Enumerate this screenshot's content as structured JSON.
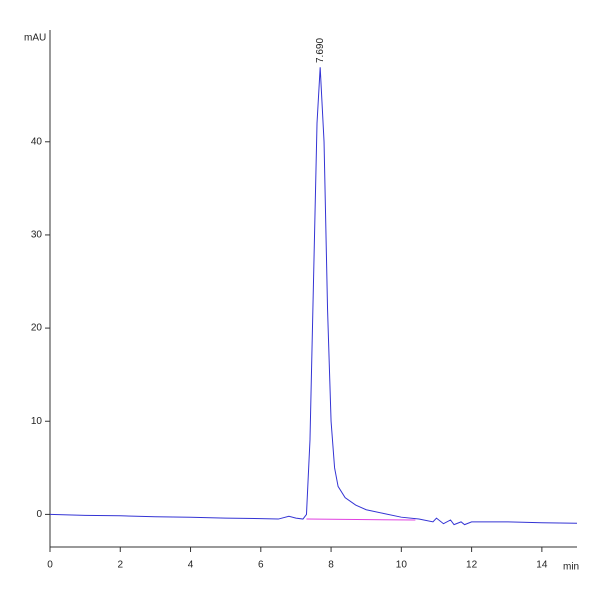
{
  "chart_data": {
    "type": "line",
    "ylabel": "mAU",
    "xlabel": "min",
    "x": [
      0,
      1,
      2,
      3,
      4,
      5,
      6,
      6.5,
      6.8,
      7.0,
      7.2,
      7.3,
      7.4,
      7.5,
      7.6,
      7.69,
      7.8,
      7.9,
      8.0,
      8.1,
      8.2,
      8.4,
      8.7,
      9.0,
      9.5,
      10.0,
      10.5,
      10.9,
      11.0,
      11.2,
      11.4,
      11.5,
      11.7,
      11.8,
      12.0,
      13.0,
      14.0,
      15.0
    ],
    "series": [
      {
        "color": "#3434d4",
        "values": [
          0,
          -0.1,
          -0.15,
          -0.25,
          -0.3,
          -0.4,
          -0.45,
          -0.5,
          -0.2,
          -0.4,
          -0.5,
          0,
          8,
          25,
          42,
          48,
          40,
          22,
          10,
          5,
          3,
          1.8,
          1,
          0.5,
          0.1,
          -0.3,
          -0.5,
          -0.8,
          -0.4,
          -1.0,
          -0.6,
          -1.1,
          -0.8,
          -1.1,
          -0.8,
          -0.8,
          -0.9,
          -0.95
        ]
      }
    ],
    "baseline": {
      "color": "#e040e0",
      "x": [
        7.3,
        10.4
      ],
      "values": [
        -0.5,
        -0.6
      ]
    },
    "annotations": [
      {
        "text": "7.690",
        "x": 7.69
      }
    ],
    "xlim": [
      0,
      15
    ],
    "ylim": [
      -3.5,
      52
    ],
    "xticks": [
      0,
      2,
      4,
      6,
      8,
      10,
      12,
      14
    ],
    "yticks": [
      0,
      10,
      20,
      30,
      40
    ]
  }
}
